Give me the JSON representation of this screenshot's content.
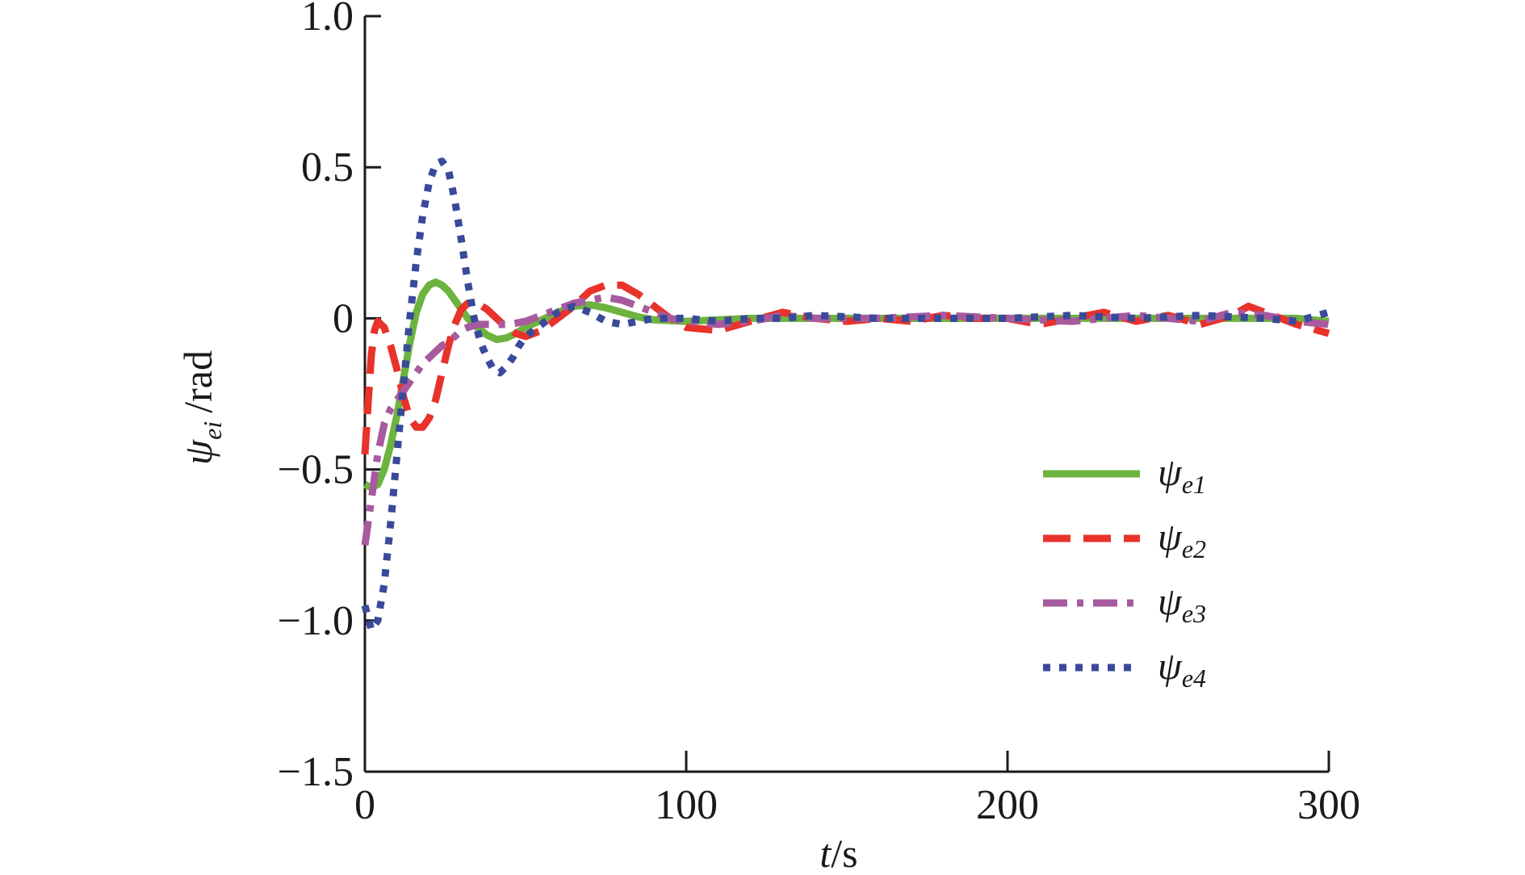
{
  "chart_data": {
    "type": "line",
    "title": "",
    "xlabel": "t/s",
    "ylabel": "ψei/rad",
    "xlabel_parts": {
      "var": "t",
      "unit": "/s"
    },
    "ylabel_parts": {
      "var": "ψ",
      "sub": "ei",
      "unit": "/rad"
    },
    "xlim": [
      0,
      300
    ],
    "ylim": [
      -1.5,
      1.0
    ],
    "xticks": [
      0,
      100,
      200,
      300
    ],
    "xtick_labels": [
      "0",
      "100",
      "200",
      "300"
    ],
    "yticks": [
      -1.5,
      -1.0,
      -0.5,
      0,
      0.5,
      1.0
    ],
    "ytick_labels": [
      "−1.5",
      "−1.0",
      "−0.5",
      "0",
      "0.5",
      "1.0"
    ],
    "grid": false,
    "legend_position": "right",
    "series": [
      {
        "name": "ψe1",
        "symbol": "ψ",
        "sub": "e1",
        "color": "#6db33f",
        "style": "solid",
        "x": [
          0,
          2,
          4,
          6,
          8,
          10,
          12,
          14,
          16,
          18,
          20,
          22,
          24,
          26,
          28,
          30,
          32,
          35,
          38,
          41,
          44,
          47,
          50,
          55,
          60,
          65,
          70,
          75,
          80,
          85,
          90,
          100,
          110,
          120,
          140,
          160,
          180,
          200,
          220,
          240,
          260,
          275,
          290,
          300
        ],
        "y": [
          -0.55,
          -0.56,
          -0.55,
          -0.5,
          -0.42,
          -0.32,
          -0.2,
          -0.08,
          0.02,
          0.08,
          0.11,
          0.12,
          0.11,
          0.09,
          0.06,
          0.03,
          0.0,
          -0.03,
          -0.055,
          -0.07,
          -0.065,
          -0.05,
          -0.03,
          -0.005,
          0.02,
          0.04,
          0.045,
          0.035,
          0.02,
          0.005,
          -0.005,
          -0.01,
          -0.005,
          0.0,
          0.0,
          0.0,
          0.0,
          0.0,
          0.0,
          0.0,
          0.0,
          0.0,
          0.0,
          -0.01
        ]
      },
      {
        "name": "ψe2",
        "symbol": "ψ",
        "sub": "e2",
        "color": "#e8322a",
        "style": "dashed",
        "x": [
          0,
          1,
          2,
          3,
          4,
          6,
          8,
          10,
          12,
          14,
          16,
          18,
          20,
          22,
          24,
          26,
          28,
          30,
          32,
          35,
          38,
          41,
          44,
          47,
          50,
          55,
          60,
          65,
          70,
          75,
          80,
          85,
          90,
          95,
          100,
          110,
          120,
          130,
          140,
          150,
          160,
          170,
          180,
          190,
          200,
          210,
          220,
          230,
          240,
          250,
          260,
          270,
          275,
          280,
          290,
          300
        ],
        "y": [
          -0.45,
          -0.28,
          -0.12,
          -0.04,
          -0.01,
          -0.03,
          -0.09,
          -0.17,
          -0.26,
          -0.33,
          -0.36,
          -0.36,
          -0.33,
          -0.27,
          -0.18,
          -0.09,
          -0.02,
          0.03,
          0.05,
          0.05,
          0.03,
          0.0,
          -0.03,
          -0.05,
          -0.06,
          -0.04,
          0.0,
          0.04,
          0.09,
          0.11,
          0.11,
          0.08,
          0.04,
          0.0,
          -0.03,
          -0.04,
          -0.01,
          0.02,
          0.0,
          -0.01,
          0.0,
          -0.01,
          0.01,
          0.0,
          0.0,
          -0.02,
          0.0,
          0.02,
          -0.01,
          0.01,
          -0.02,
          0.01,
          0.04,
          0.02,
          -0.02,
          -0.05
        ]
      },
      {
        "name": "ψe3",
        "symbol": "ψ",
        "sub": "e3",
        "color": "#a85a9e",
        "style": "dashdot",
        "x": [
          0,
          2,
          4,
          6,
          8,
          10,
          12,
          14,
          16,
          18,
          20,
          22,
          24,
          26,
          28,
          30,
          32,
          35,
          40,
          45,
          50,
          55,
          60,
          65,
          70,
          75,
          80,
          85,
          90,
          95,
          100,
          110,
          120,
          130,
          140,
          160,
          180,
          200,
          220,
          240,
          260,
          270,
          280,
          290,
          300
        ],
        "y": [
          -0.75,
          -0.6,
          -0.45,
          -0.35,
          -0.3,
          -0.27,
          -0.24,
          -0.21,
          -0.18,
          -0.15,
          -0.13,
          -0.11,
          -0.09,
          -0.08,
          -0.06,
          -0.04,
          -0.03,
          -0.02,
          -0.02,
          -0.02,
          -0.01,
          0.01,
          0.03,
          0.05,
          0.06,
          0.07,
          0.06,
          0.04,
          0.02,
          0.0,
          -0.01,
          -0.02,
          -0.01,
          0.01,
          0.0,
          0.0,
          0.01,
          0.0,
          -0.01,
          0.01,
          -0.01,
          0.02,
          0.01,
          -0.01,
          -0.02
        ]
      },
      {
        "name": "ψe4",
        "symbol": "ψ",
        "sub": "e4",
        "color": "#3a4a9a",
        "style": "dotted",
        "x": [
          0,
          2,
          4,
          6,
          8,
          10,
          12,
          14,
          16,
          18,
          20,
          22,
          24,
          26,
          28,
          30,
          32,
          34,
          36,
          38,
          40,
          42,
          44,
          46,
          48,
          50,
          55,
          60,
          65,
          70,
          75,
          80,
          85,
          90,
          100,
          110,
          120,
          130,
          140,
          160,
          180,
          200,
          220,
          240,
          260,
          280,
          290,
          300
        ],
        "y": [
          -0.95,
          -1.03,
          -1.0,
          -0.88,
          -0.68,
          -0.45,
          -0.22,
          0.0,
          0.19,
          0.34,
          0.45,
          0.51,
          0.52,
          0.49,
          0.39,
          0.26,
          0.12,
          0.0,
          -0.08,
          -0.13,
          -0.17,
          -0.18,
          -0.16,
          -0.13,
          -0.09,
          -0.06,
          -0.02,
          0.02,
          0.04,
          0.02,
          -0.01,
          -0.02,
          -0.01,
          0.0,
          0.0,
          -0.01,
          0.0,
          0.0,
          0.01,
          0.0,
          0.0,
          0.0,
          0.01,
          0.0,
          0.01,
          0.0,
          -0.01,
          0.02
        ]
      }
    ]
  }
}
